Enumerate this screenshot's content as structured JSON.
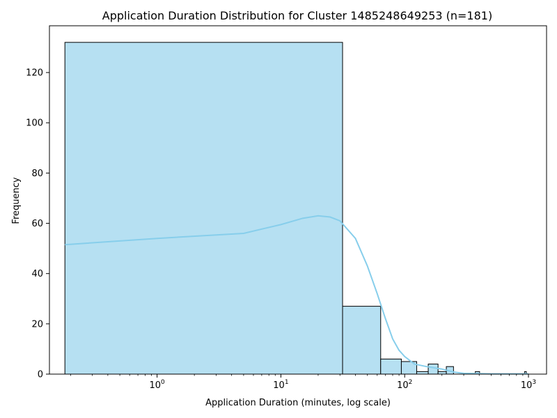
{
  "chart_data": {
    "type": "bar",
    "title": "Application Duration Distribution for Cluster 1485248649253 (n=181)",
    "xlabel": "Application Duration (minutes, log scale)",
    "ylabel": "Frequency",
    "x_scale": "log",
    "xlim": [
      0.135,
      1400
    ],
    "ylim": [
      0,
      138.6
    ],
    "y_ticks": [
      0,
      20,
      40,
      60,
      80,
      100,
      120
    ],
    "x_ticks": [
      {
        "value": 1,
        "base": "10",
        "exp": "0"
      },
      {
        "value": 10,
        "base": "10",
        "exp": "1"
      },
      {
        "value": 100,
        "base": "10",
        "exp": "2"
      },
      {
        "value": 1000,
        "base": "10",
        "exp": "3"
      }
    ],
    "bar_color": "#b6e0f2",
    "bar_edge_color": "#000000",
    "kde_color": "#87ceeb",
    "grid": false,
    "bins": [
      {
        "x0": 0.18,
        "x1": 31.5,
        "count": 132
      },
      {
        "x0": 31.5,
        "x1": 64,
        "count": 27
      },
      {
        "x0": 64,
        "x1": 94,
        "count": 6
      },
      {
        "x0": 94,
        "x1": 125,
        "count": 5
      },
      {
        "x0": 125,
        "x1": 155,
        "count": 1
      },
      {
        "x0": 155,
        "x1": 186,
        "count": 4
      },
      {
        "x0": 186,
        "x1": 217,
        "count": 1
      },
      {
        "x0": 217,
        "x1": 248,
        "count": 3
      },
      {
        "x0": 248,
        "x1": 279,
        "count": 0
      },
      {
        "x0": 372,
        "x1": 403,
        "count": 1
      },
      {
        "x0": 930,
        "x1": 961,
        "count": 1
      }
    ],
    "kde": {
      "x": [
        0.18,
        1,
        5,
        10,
        15,
        20,
        25,
        30,
        40,
        50,
        60,
        70,
        80,
        90,
        100,
        120,
        150,
        200,
        250,
        300,
        500,
        1000
      ],
      "y": [
        51.5,
        54,
        56,
        59.5,
        62,
        63,
        62.5,
        61,
        54,
        43,
        32,
        22,
        14,
        9.5,
        7,
        4,
        3,
        2,
        0.8,
        0.3,
        0.1,
        0.1
      ]
    }
  }
}
